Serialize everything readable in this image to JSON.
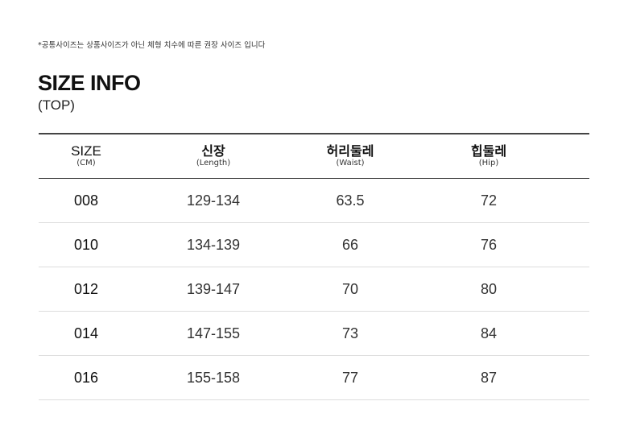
{
  "note": "*공통사이즈는 상품사이즈가 아닌 체형 치수에 따른 권장 사이즈 입니다",
  "title": "SIZE INFO",
  "subtitle": "(TOP)",
  "headers": [
    {
      "main": "SIZE",
      "sub": "(CM)"
    },
    {
      "main": "신장",
      "sub": "(Length)"
    },
    {
      "main": "허리둘레",
      "sub": "(Waist)"
    },
    {
      "main": "힙둘레",
      "sub": "(Hip)"
    }
  ],
  "rows": [
    [
      "008",
      "129-134",
      "63.5",
      "72"
    ],
    [
      "010",
      "134-139",
      "66",
      "76"
    ],
    [
      "012",
      "139-147",
      "70",
      "80"
    ],
    [
      "014",
      "147-155",
      "73",
      "84"
    ],
    [
      "016",
      "155-158",
      "77",
      "87"
    ]
  ]
}
